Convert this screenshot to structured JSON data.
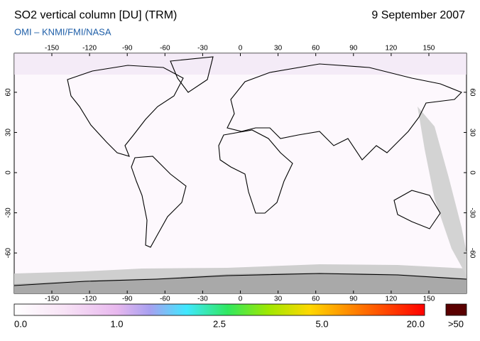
{
  "header": {
    "title": "SO2 vertical column [DU] (TRM)",
    "date": "9 September 2007",
    "subtitle": "OMI  –  KNMI/FMI/NASA"
  },
  "map": {
    "lon_ticks": [
      -150,
      -120,
      -90,
      -60,
      -30,
      0,
      30,
      60,
      90,
      120,
      150
    ],
    "lat_ticks": [
      -60,
      -30,
      0,
      30,
      60
    ]
  },
  "colorbar": {
    "labels": [
      "0.0",
      "1.0",
      "2.5",
      "5.0",
      "20.0"
    ],
    "overflow_label": ">50"
  }
}
